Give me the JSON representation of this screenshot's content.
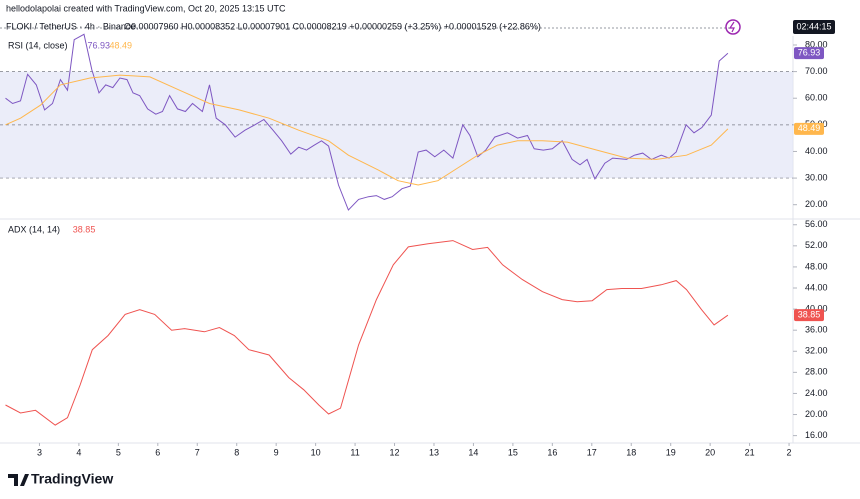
{
  "header": {
    "credit": "hellodolapolai created with TradingView.com, Oct 20, 2025 13:15 UTC",
    "symbol": "FLOKI / TetherUS · 4h · Binance",
    "ohlc": "O0.00007960 H0.00008352 L0.00007901 C0.00008219 +0.00000259 (+3.25%) +0.00001529 (+22.86%)",
    "clock": "02:44:15"
  },
  "footer": {
    "logo": "TradingView"
  },
  "chart_data": [
    {
      "type": "line",
      "title": "RSI (14, close)",
      "xlim": [
        2.0,
        22.1
      ],
      "ylim": [
        15,
        83
      ],
      "yticks": [
        {
          "value": 80,
          "label": "80.00"
        },
        {
          "value": 70,
          "label": "70.00"
        },
        {
          "value": 60,
          "label": "60.00"
        },
        {
          "value": 50,
          "label": "50.00"
        },
        {
          "value": 40,
          "label": "40.00"
        },
        {
          "value": 30,
          "label": "30.00"
        },
        {
          "value": 20,
          "label": "20.00"
        }
      ],
      "levels": [
        30,
        50,
        70
      ],
      "band_color": "#e3e6f7",
      "series": [
        {
          "color": "#7e57c2",
          "x": [
            2.14,
            2.32,
            2.52,
            2.7,
            2.92,
            3.13,
            3.33,
            3.53,
            3.71,
            3.88,
            4.13,
            4.33,
            4.51,
            4.68,
            4.86,
            5.04,
            5.22,
            5.37,
            5.54,
            5.74,
            5.95,
            6.12,
            6.3,
            6.5,
            6.7,
            6.88,
            7.13,
            7.31,
            7.48,
            7.71,
            7.96,
            8.21,
            8.46,
            8.69,
            8.92,
            9.14,
            9.37,
            9.57,
            9.77,
            9.97,
            10.15,
            10.33,
            10.58,
            10.83,
            11.09,
            11.34,
            11.54,
            11.74,
            11.94,
            12.19,
            12.4,
            12.6,
            12.8,
            13.02,
            13.25,
            13.48,
            13.73,
            13.91,
            14.11,
            14.31,
            14.54,
            14.86,
            15.12,
            15.37,
            15.54,
            15.77,
            16.0,
            16.25,
            16.5,
            16.7,
            16.88,
            17.08,
            17.33,
            17.53,
            17.88,
            18.08,
            18.29,
            18.51,
            18.76,
            18.96,
            19.14,
            19.39,
            19.59,
            19.79,
            20.03,
            20.23,
            20.45
          ],
          "values": [
            60,
            58,
            59,
            69,
            65,
            55.6,
            58,
            67,
            63,
            82,
            84,
            70.6,
            62,
            65,
            64,
            67.6,
            67,
            62,
            61,
            56,
            54,
            55,
            61,
            56,
            55,
            58,
            55,
            65,
            52.5,
            50,
            45.4,
            48,
            50,
            52,
            48,
            44,
            39,
            41.6,
            40.5,
            42.4,
            44,
            42,
            27.4,
            18,
            22,
            23,
            23.4,
            22,
            23,
            26,
            27,
            39.8,
            40.5,
            38,
            40.5,
            37.5,
            50,
            46,
            38,
            40.5,
            45.4,
            47,
            45,
            46,
            41,
            40.5,
            41,
            44,
            37,
            35,
            37,
            29.7,
            35.6,
            37.5,
            37,
            38.6,
            39.4,
            37,
            38.6,
            37.5,
            39.8,
            50,
            47,
            49,
            53.7,
            74,
            76.93
          ]
        },
        {
          "color": "#ffb74d",
          "x": [
            2.14,
            2.52,
            3.03,
            3.53,
            4.28,
            5.04,
            5.8,
            6.55,
            7.31,
            8.06,
            8.82,
            9.57,
            10.33,
            10.83,
            11.59,
            12.09,
            12.6,
            13.1,
            13.6,
            14.11,
            14.61,
            15.12,
            15.75,
            16.38,
            17.13,
            17.89,
            18.64,
            19.4,
            20.03,
            20.45
          ],
          "values": [
            50,
            52.5,
            57.4,
            65,
            67.6,
            68.7,
            68,
            63,
            58,
            55.6,
            52.5,
            48,
            44,
            38.6,
            33,
            29,
            27.4,
            29,
            33.8,
            38.6,
            42.4,
            44,
            44,
            43.5,
            40.5,
            37.5,
            37,
            38.6,
            42.4,
            48.49
          ]
        }
      ]
    },
    {
      "type": "line",
      "title": "ADX (14, 14)",
      "xlim": [
        2.0,
        22.1
      ],
      "ylim": [
        14.6,
        56.9
      ],
      "xticks": [
        3,
        4,
        5,
        6,
        7,
        8,
        9,
        10,
        11,
        12,
        13,
        14,
        15,
        16,
        17,
        18,
        19,
        20,
        21,
        {
          "value": 22,
          "label": "2"
        }
      ],
      "yticks": [
        {
          "value": 56,
          "label": "56.00"
        },
        {
          "value": 52,
          "label": "52.00"
        },
        {
          "value": 48,
          "label": "48.00"
        },
        {
          "value": 44,
          "label": "44.00"
        },
        {
          "value": 40,
          "label": "40.00"
        },
        {
          "value": 36,
          "label": "36.00"
        },
        {
          "value": 32,
          "label": "32.00"
        },
        {
          "value": 28,
          "label": "28.00"
        },
        {
          "value": 24,
          "label": "24.00"
        },
        {
          "value": 20,
          "label": "20.00"
        },
        {
          "value": 16,
          "label": "16.00"
        }
      ],
      "series": [
        {
          "color": "#ef5350",
          "x": [
            2.14,
            2.52,
            2.9,
            3.4,
            3.71,
            4.03,
            4.34,
            4.74,
            5.17,
            5.54,
            5.92,
            6.35,
            6.68,
            7.18,
            7.56,
            7.94,
            8.31,
            8.82,
            9.32,
            9.7,
            10.08,
            10.33,
            10.63,
            11.09,
            11.54,
            11.97,
            12.35,
            12.85,
            13.48,
            13.98,
            14.36,
            14.74,
            15.24,
            15.75,
            16.25,
            16.63,
            17.01,
            17.38,
            17.76,
            18.26,
            18.76,
            19.14,
            19.4,
            19.78,
            20.1,
            20.45
          ],
          "values": [
            21.8,
            20.3,
            20.8,
            18,
            19.4,
            25.6,
            32.3,
            35,
            39,
            39.9,
            39,
            36,
            36.3,
            35.7,
            36.5,
            35,
            32.3,
            31.3,
            27,
            24.7,
            21.8,
            20.1,
            21.2,
            33.2,
            41.8,
            48.4,
            51.8,
            52.4,
            53,
            51.3,
            51.7,
            48.4,
            45.6,
            43.3,
            41.8,
            41.4,
            41.6,
            43.7,
            43.9,
            43.9,
            44.6,
            45.4,
            43.7,
            39.9,
            37,
            38.85
          ]
        }
      ]
    }
  ]
}
